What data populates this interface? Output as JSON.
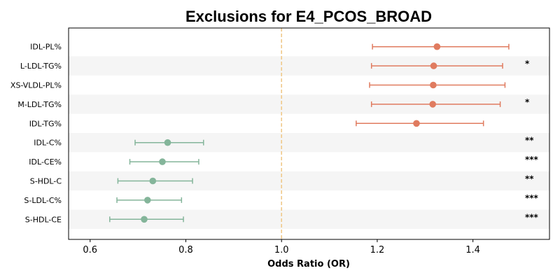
{
  "chart_data": {
    "type": "forest",
    "title": "Exclusions for E4_PCOS_BROAD",
    "xlabel": "Odds Ratio (OR)",
    "ylabel": "",
    "xlim": [
      0.555,
      1.56
    ],
    "xticks": [
      0.6,
      0.8,
      1.0,
      1.2,
      1.4
    ],
    "xtick_labels": [
      "0.6",
      "0.8",
      "1.0",
      "1.2",
      "1.4"
    ],
    "reference_line": 1.0,
    "colors": {
      "positive": "#e07b5f",
      "negative": "#84b59a",
      "reference": "#f0c98a",
      "stripe": "#f5f5f5"
    },
    "rows": [
      {
        "label": "IDL-PL%",
        "or": 1.325,
        "lo": 1.19,
        "hi": 1.475,
        "sig": ""
      },
      {
        "label": "L-LDL-TG%",
        "or": 1.318,
        "lo": 1.188,
        "hi": 1.462,
        "sig": "*"
      },
      {
        "label": "XS-VLDL-PL%",
        "or": 1.317,
        "lo": 1.184,
        "hi": 1.467,
        "sig": ""
      },
      {
        "label": "M-LDL-TG%",
        "or": 1.316,
        "lo": 1.188,
        "hi": 1.457,
        "sig": "*"
      },
      {
        "label": "IDL-TG%",
        "or": 1.282,
        "lo": 1.156,
        "hi": 1.422,
        "sig": ""
      },
      {
        "label": "IDL-C%",
        "or": 0.762,
        "lo": 0.694,
        "hi": 0.837,
        "sig": "**"
      },
      {
        "label": "IDL-CE%",
        "or": 0.751,
        "lo": 0.683,
        "hi": 0.827,
        "sig": "***"
      },
      {
        "label": "S-HDL-C",
        "or": 0.731,
        "lo": 0.658,
        "hi": 0.814,
        "sig": "**"
      },
      {
        "label": "S-LDL-C%",
        "or": 0.72,
        "lo": 0.656,
        "hi": 0.791,
        "sig": "***"
      },
      {
        "label": "S-HDL-CE",
        "or": 0.713,
        "lo": 0.641,
        "hi": 0.795,
        "sig": "***"
      }
    ]
  }
}
